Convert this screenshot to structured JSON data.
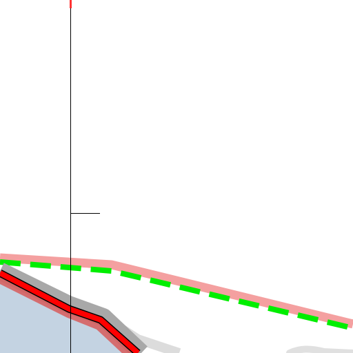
{
  "map": {
    "background_color": "#ffffff",
    "features": [
      {
        "name": "light-gray-road-casing",
        "color": "#e0e0e0"
      },
      {
        "name": "blue-gray-area",
        "color": "#c4d3e2"
      },
      {
        "name": "salmon-road",
        "color": "#f4a0a0"
      },
      {
        "name": "green-dashed-boundary",
        "color": "#00ee00"
      },
      {
        "name": "main-road-casing",
        "color": "#a8a8a8"
      },
      {
        "name": "main-road-red-semi",
        "color": "#d85a5a"
      },
      {
        "name": "main-road-red-core",
        "color": "#ff0000"
      },
      {
        "name": "thin-vertical-line",
        "color": "#000000"
      },
      {
        "name": "red-tick-mark",
        "color": "#ff3333"
      }
    ]
  }
}
